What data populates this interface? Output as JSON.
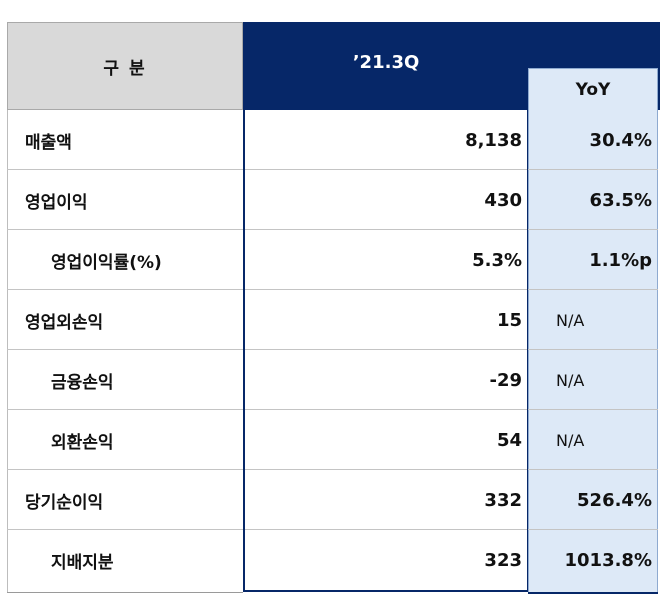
{
  "header": {
    "category_label": "구   분",
    "period_label": "’21.3Q",
    "yoy_label": "YoY"
  },
  "rows": [
    {
      "label": "매출액",
      "value": "8,138",
      "yoy": "30.4%"
    },
    {
      "label": "영업이익",
      "value": "430",
      "yoy": "63.5%"
    },
    {
      "label": "영업이익률(%)",
      "value": "5.3%",
      "yoy": "1.1%p"
    },
    {
      "label": "영업외손익",
      "value": "15",
      "yoy": "N/A"
    },
    {
      "label": "금융손익",
      "value": "-29",
      "yoy": "N/A"
    },
    {
      "label": "외환손익",
      "value": "54",
      "yoy": "N/A"
    },
    {
      "label": "당기순이익",
      "value": "332",
      "yoy": "526.4%"
    },
    {
      "label": "지배지분",
      "value": "323",
      "yoy": "1013.8%"
    }
  ]
}
